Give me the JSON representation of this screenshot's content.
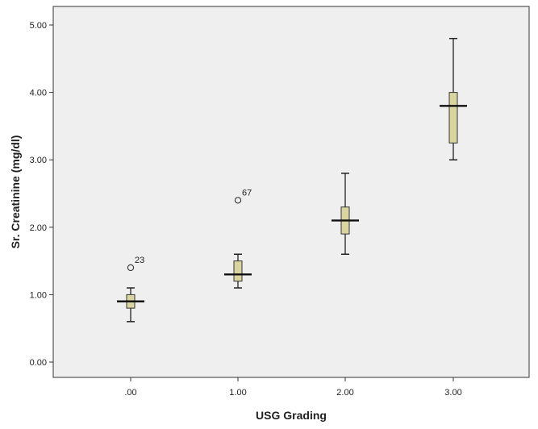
{
  "chart_data": {
    "type": "boxplot",
    "xlabel": "USG Grading",
    "ylabel": "Sr. Creatinine (mg/dl)",
    "ylim": [
      -0.05,
      5.2
    ],
    "y_ticks": [
      0.0,
      1.0,
      2.0,
      3.0,
      4.0,
      5.0
    ],
    "y_tick_labels": [
      "0.00",
      "1.00",
      "2.00",
      "3.00",
      "4.00",
      "5.00"
    ],
    "grid": false,
    "plot_background": "#efefef",
    "box_fill": "#d9d4a0",
    "categories": [
      ".00",
      "1.00",
      "2.00",
      "3.00"
    ],
    "boxes": [
      {
        "category": ".00",
        "min": 0.6,
        "q1": 0.8,
        "median": 0.9,
        "q3": 1.0,
        "max": 1.1,
        "outliers": [
          {
            "value": 1.4,
            "label": "23"
          }
        ]
      },
      {
        "category": "1.00",
        "min": 1.1,
        "q1": 1.2,
        "median": 1.3,
        "q3": 1.5,
        "max": 1.6,
        "outliers": [
          {
            "value": 2.4,
            "label": "67"
          }
        ]
      },
      {
        "category": "2.00",
        "min": 1.6,
        "q1": 1.9,
        "median": 2.1,
        "q3": 2.3,
        "max": 2.8,
        "outliers": []
      },
      {
        "category": "3.00",
        "min": 3.0,
        "q1": 3.25,
        "median": 3.8,
        "q3": 4.0,
        "max": 4.8,
        "outliers": []
      }
    ]
  }
}
